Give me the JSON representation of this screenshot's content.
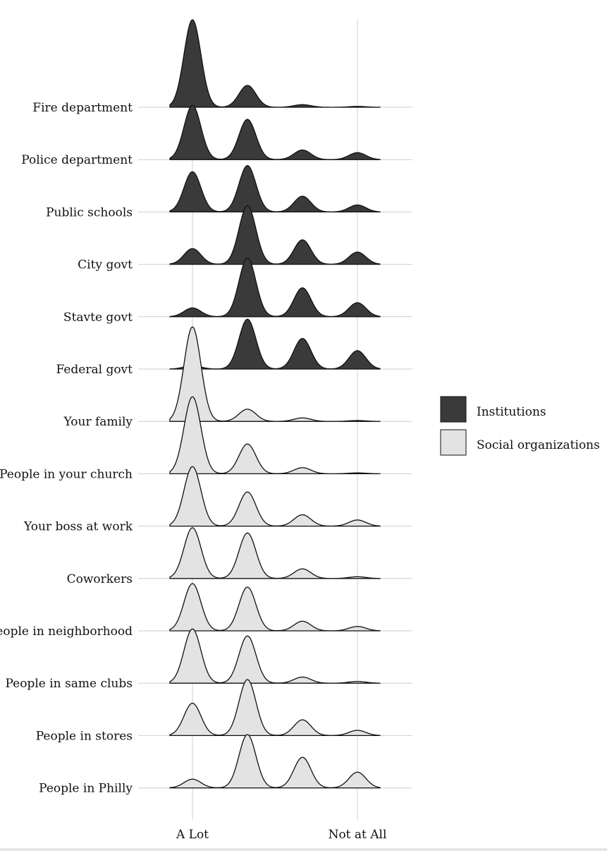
{
  "chart_data": {
    "type": "ridgeline",
    "x_tick_labels": [
      "A Lot",
      "Not at All"
    ],
    "x_levels": 4,
    "grid": true,
    "legend_position": "right",
    "series": [
      {
        "name": "Institutions",
        "color": "#3a3a3a"
      },
      {
        "name": "Social organizations",
        "color": "#e3e3e3"
      }
    ],
    "rows": [
      {
        "label": "Fire department",
        "group": "Institutions",
        "peaks": [
          1.0,
          0.25,
          0.03,
          0.01
        ]
      },
      {
        "label": "Police department",
        "group": "Institutions",
        "peaks": [
          0.62,
          0.46,
          0.11,
          0.08
        ]
      },
      {
        "label": "Public schools",
        "group": "Institutions",
        "peaks": [
          0.46,
          0.53,
          0.18,
          0.08
        ]
      },
      {
        "label": "City govt",
        "group": "Institutions",
        "peaks": [
          0.18,
          0.67,
          0.28,
          0.14
        ]
      },
      {
        "label": "Stavte govt",
        "group": "Institutions",
        "peaks": [
          0.1,
          0.67,
          0.33,
          0.16
        ]
      },
      {
        "label": "Federal govt",
        "group": "Institutions",
        "peaks": [
          0.04,
          0.57,
          0.35,
          0.21
        ]
      },
      {
        "label": "Your family",
        "group": "Social organizations",
        "peaks": [
          1.08,
          0.14,
          0.04,
          0.01
        ]
      },
      {
        "label": "People in your church",
        "group": "Social organizations",
        "peaks": [
          0.88,
          0.34,
          0.07,
          0.01
        ]
      },
      {
        "label": "Your boss at work",
        "group": "Social organizations",
        "peaks": [
          0.68,
          0.39,
          0.13,
          0.07
        ]
      },
      {
        "label": "Coworkers",
        "group": "Social organizations",
        "peaks": [
          0.58,
          0.52,
          0.11,
          0.02
        ]
      },
      {
        "label": "People in neighborhood",
        "group": "Social organizations",
        "peaks": [
          0.54,
          0.5,
          0.11,
          0.05
        ]
      },
      {
        "label": "People in same clubs",
        "group": "Social organizations",
        "peaks": [
          0.62,
          0.54,
          0.07,
          0.02
        ]
      },
      {
        "label": "People in stores",
        "group": "Social organizations",
        "peaks": [
          0.37,
          0.64,
          0.18,
          0.06
        ]
      },
      {
        "label": "People in Philly",
        "group": "Social organizations",
        "peaks": [
          0.1,
          0.61,
          0.35,
          0.18
        ]
      }
    ]
  }
}
